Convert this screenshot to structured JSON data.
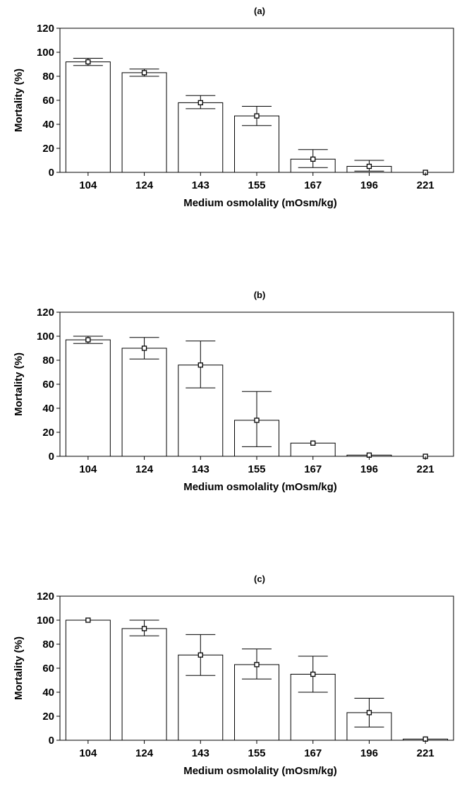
{
  "chart_data": [
    {
      "type": "bar",
      "title": "(a)",
      "xlabel": "Medium osmolality (mOsm/kg)",
      "ylabel": "Mortality (%)",
      "ylim": [
        0,
        120
      ],
      "yticks": [
        0,
        20,
        40,
        60,
        80,
        100,
        120
      ],
      "categories": [
        "104",
        "124",
        "143",
        "155",
        "167",
        "196",
        "221"
      ],
      "values": [
        92,
        83,
        58,
        47,
        11,
        5,
        0
      ],
      "error_low": [
        89,
        80,
        53,
        39,
        4,
        1,
        0
      ],
      "error_high": [
        95,
        86,
        64,
        55,
        19,
        10,
        0
      ],
      "grid": false,
      "legend": "none"
    },
    {
      "type": "bar",
      "title": "(b)",
      "xlabel": "Medium osmolality (mOsm/kg)",
      "ylabel": "Mortality (%)",
      "ylim": [
        0,
        120
      ],
      "yticks": [
        0,
        20,
        40,
        60,
        80,
        100,
        120
      ],
      "categories": [
        "104",
        "124",
        "143",
        "155",
        "167",
        "196",
        "221"
      ],
      "values": [
        97,
        90,
        76,
        30,
        11,
        1,
        0
      ],
      "error_low": [
        94,
        81,
        57,
        8,
        11,
        1,
        0
      ],
      "error_high": [
        100,
        99,
        96,
        54,
        11,
        1,
        0
      ],
      "grid": false,
      "legend": "none"
    },
    {
      "type": "bar",
      "title": "(c)",
      "xlabel": "Medium osmolality (mOsm/kg)",
      "ylabel": "Mortality (%)",
      "ylim": [
        0,
        120
      ],
      "yticks": [
        0,
        20,
        40,
        60,
        80,
        100,
        120
      ],
      "categories": [
        "104",
        "124",
        "143",
        "155",
        "167",
        "196",
        "221"
      ],
      "values": [
        100,
        93,
        71,
        63,
        55,
        23,
        1
      ],
      "error_low": [
        100,
        87,
        54,
        51,
        40,
        11,
        1
      ],
      "error_high": [
        100,
        100,
        88,
        76,
        70,
        35,
        1
      ],
      "grid": false,
      "legend": "none"
    }
  ]
}
